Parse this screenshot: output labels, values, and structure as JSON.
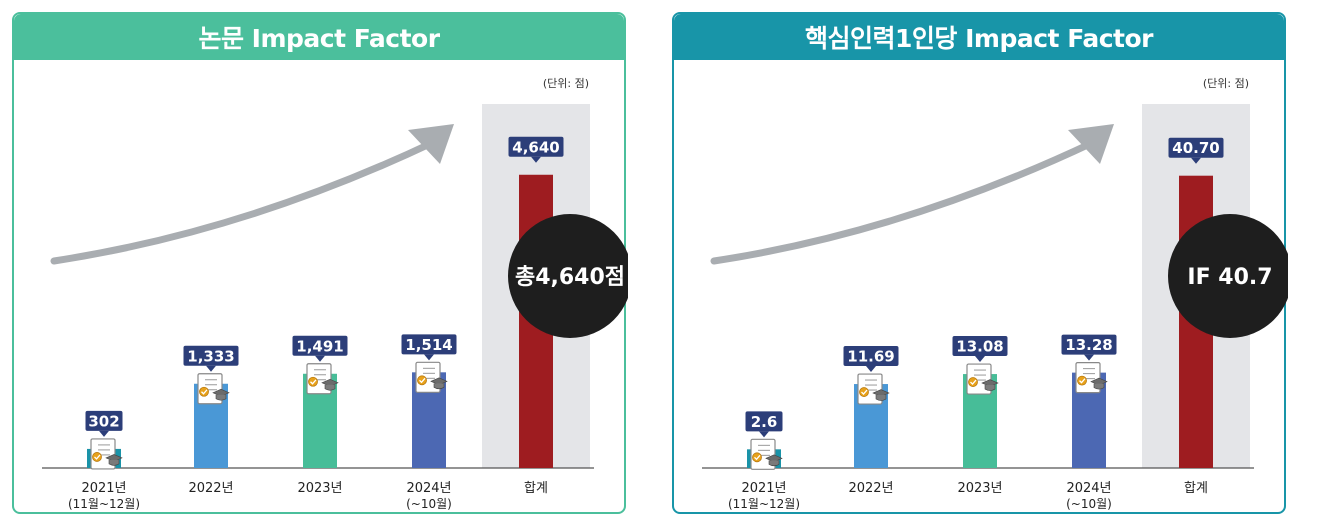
{
  "chart_data": [
    {
      "type": "bar",
      "title": "논문 Impact Factor",
      "unit_label": "(단위: 점)",
      "categories": [
        "2021년",
        "2022년",
        "2023년",
        "2024년",
        "합계"
      ],
      "category_sublabels": [
        "(11월~12월)",
        "",
        "",
        "(~10월)",
        ""
      ],
      "values": [
        302,
        1333,
        1491,
        1514,
        4640
      ],
      "value_labels": [
        "302",
        "1,333",
        "1,491",
        "1,514",
        "4,640"
      ],
      "ylim": [
        0,
        5000
      ],
      "bar_colors": [
        "#1a93a8",
        "#4a98d6",
        "#47bd98",
        "#4c68b3",
        "#9e1c20"
      ],
      "callout": "총4,640점",
      "header_color": "#4bbf9c"
    },
    {
      "type": "bar",
      "title": "핵심인력1인당 Impact Factor",
      "unit_label": "(단위: 점)",
      "categories": [
        "2021년",
        "2022년",
        "2023년",
        "2024년",
        "합계"
      ],
      "category_sublabels": [
        "(11월~12월)",
        "",
        "",
        "(~10월)",
        ""
      ],
      "values": [
        2.6,
        11.69,
        13.08,
        13.28,
        40.7
      ],
      "value_labels": [
        "2.6",
        "11.69",
        "13.08",
        "13.28",
        "40.70"
      ],
      "ylim": [
        0,
        44
      ],
      "bar_colors": [
        "#1a93a8",
        "#4a98d6",
        "#47bd98",
        "#4c68b3",
        "#9e1c20"
      ],
      "callout": "IF 40.7",
      "header_color": "#1895a8"
    }
  ]
}
